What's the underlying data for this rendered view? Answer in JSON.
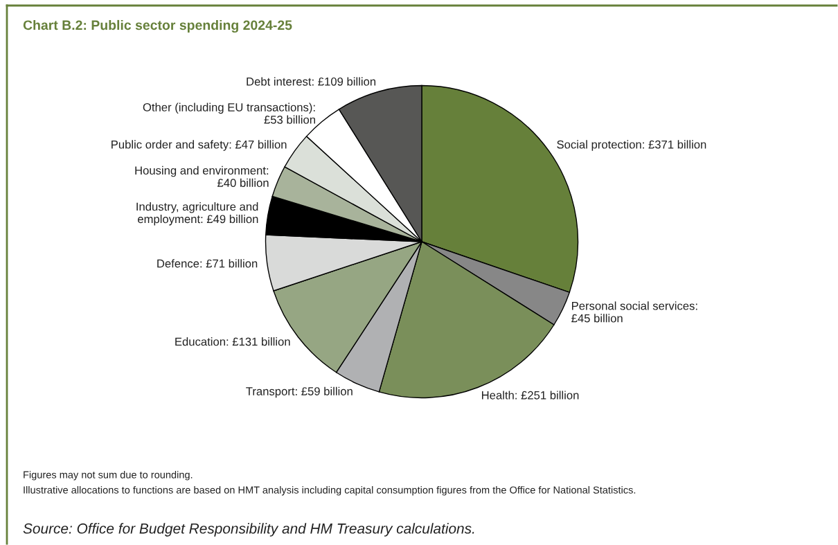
{
  "chart_data": {
    "type": "pie",
    "title": "Chart B.2: Public sector spending 2024-25",
    "categories": [
      "Social protection: £371 billion",
      "Personal social services:\n£45 billion",
      "Health: £251 billion",
      "Transport: £59 billion",
      "Education: £131 billion",
      "Defence: £71 billion",
      "Industry, agriculture and\nemployment: £49 billion",
      "Housing and environment:\n£40 billion",
      "Public order and safety: £47 billion",
      "Other (including EU transactions):\n£53 billion",
      "Debt interest: £109 billion"
    ],
    "values": [
      371,
      45,
      251,
      59,
      131,
      71,
      49,
      40,
      47,
      53,
      109
    ],
    "colors": [
      "#66803a",
      "#878787",
      "#7a8f5a",
      "#b0b1b3",
      "#96a683",
      "#d9dad9",
      "#000000",
      "#a8b39b",
      "#dbe0d9",
      "#ffffff",
      "#575755"
    ],
    "annotations": [
      "Figures may not sum due to rounding.",
      "Illustrative allocations to functions are based on HMT analysis including capital consumption figures from the Office for National Statistics.",
      "Source: Office for Budget Responsibility and HM Treasury calculations."
    ]
  }
}
